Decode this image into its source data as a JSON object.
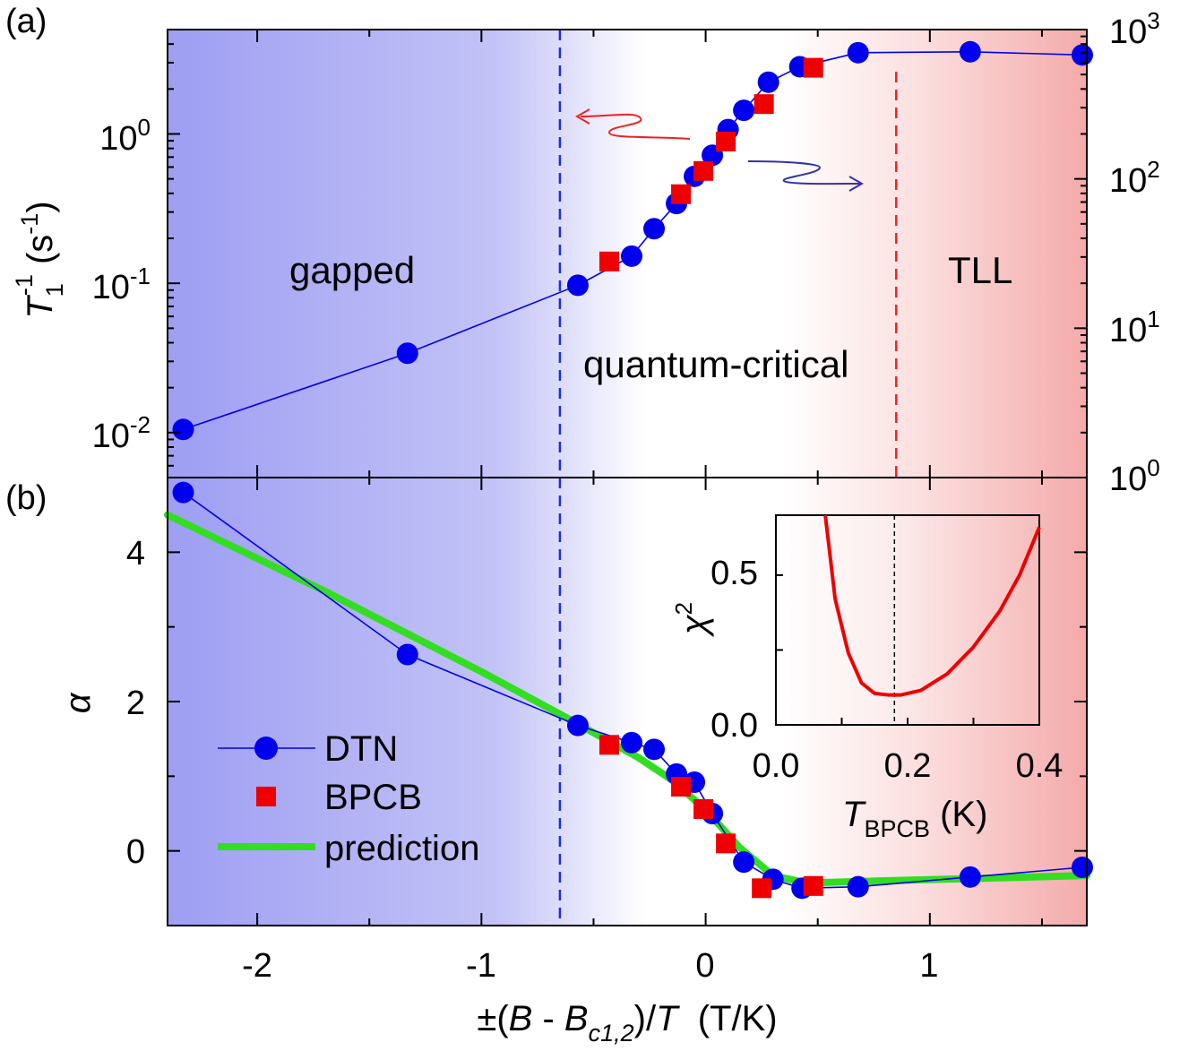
{
  "chart_data": [
    {
      "panel": "(a)",
      "type": "scatter",
      "xlabel": "±(B - Bc1,2)/T  (T/K)",
      "x_ticks": [
        "-2",
        "-1",
        "0",
        "1"
      ],
      "xlim": [
        -2.4,
        1.7
      ],
      "ylabel_left": "T1^-1 (s^-1)",
      "yscale": "log",
      "ylim_left": [
        0.005,
        5.0
      ],
      "yticks_left": [
        {
          "base": "10",
          "exp": "-2"
        },
        {
          "base": "10",
          "exp": "-1"
        },
        {
          "base": "10",
          "exp": "0"
        }
      ],
      "ylim_right": [
        1,
        1000
      ],
      "yticks_right": [
        {
          "base": "10",
          "exp": "0"
        },
        {
          "base": "10",
          "exp": "1"
        },
        {
          "base": "10",
          "exp": "2"
        },
        {
          "base": "10",
          "exp": "3"
        }
      ],
      "regions": [
        "gapped",
        "quantum-critical",
        "TLL"
      ],
      "crossovers": [
        -0.65,
        0.85
      ],
      "series": [
        {
          "name": "DTN",
          "axis": "left",
          "color": "#0000ee",
          "marker": "circle",
          "line": true,
          "x": [
            -2.33,
            -1.33,
            -0.57,
            -0.33,
            -0.23,
            -0.13,
            -0.05,
            0.03,
            0.1,
            0.17,
            0.28,
            0.42,
            0.68,
            1.18,
            1.68
          ],
          "y": [
            0.0105,
            0.034,
            0.097,
            0.152,
            0.232,
            0.342,
            0.52,
            0.72,
            1.07,
            1.44,
            2.22,
            2.82,
            3.5,
            3.55,
            3.38
          ]
        },
        {
          "name": "BPCB",
          "axis": "right",
          "color": "#ee0000",
          "marker": "square",
          "line": false,
          "x": [
            -0.43,
            -0.11,
            -0.01,
            0.09,
            0.26,
            0.48
          ],
          "y": [
            28,
            79,
            113,
            178,
            317,
            555
          ]
        }
      ],
      "annotations": [
        {
          "type": "arrow",
          "color": "#ee2222",
          "points_to": "left axis"
        },
        {
          "type": "arrow",
          "color": "#3333aa",
          "points_to": "right axis"
        }
      ]
    },
    {
      "panel": "(b)",
      "type": "line",
      "xlabel": "±(B - Bc1,2)/T  (T/K)",
      "x_ticks": [
        "-2",
        "-1",
        "0",
        "1"
      ],
      "xlim": [
        -2.4,
        1.7
      ],
      "ylabel": "α",
      "ylim": [
        -1.0,
        5.0
      ],
      "y_ticks": [
        "0",
        "2",
        "4"
      ],
      "series": [
        {
          "name": "DTN",
          "color": "#0000ee",
          "marker": "circle",
          "line": true,
          "x": [
            -2.33,
            -1.33,
            -0.57,
            -0.33,
            -0.23,
            -0.13,
            -0.05,
            0.03,
            0.17,
            0.3,
            0.43,
            0.68,
            1.18,
            1.68
          ],
          "y": [
            4.8,
            2.63,
            1.68,
            1.45,
            1.36,
            1.03,
            0.92,
            0.5,
            -0.15,
            -0.38,
            -0.5,
            -0.48,
            -0.35,
            -0.22
          ]
        },
        {
          "name": "BPCB",
          "color": "#ee0000",
          "marker": "square",
          "line": false,
          "x": [
            -0.43,
            -0.11,
            -0.01,
            0.09,
            0.25,
            0.48
          ],
          "y": [
            1.42,
            0.86,
            0.56,
            0.1,
            -0.5,
            -0.47
          ]
        },
        {
          "name": "prediction",
          "color": "#33dd22",
          "marker": "none",
          "line": true,
          "x": [
            -2.4,
            -1.7,
            -1.0,
            -0.6,
            -0.3,
            -0.15,
            0.0,
            0.15,
            0.3,
            0.45,
            0.8,
            1.2,
            1.7
          ],
          "y": [
            4.5,
            3.48,
            2.4,
            1.75,
            1.25,
            0.95,
            0.55,
            0.05,
            -0.33,
            -0.43,
            -0.4,
            -0.37,
            -0.33
          ]
        }
      ],
      "legend": {
        "entries": [
          "DTN",
          "BPCB",
          "prediction"
        ],
        "position": "lower-left"
      }
    },
    {
      "panel": "inset",
      "type": "line",
      "xlabel": "T_BPCB (K)",
      "x_ticks": [
        "0.0",
        "0.2",
        "0.4"
      ],
      "xlim": [
        0.0,
        0.4
      ],
      "ylabel": "χ²",
      "y_ticks": [
        "0.0",
        "0.5"
      ],
      "ylim": [
        0.0,
        0.7
      ],
      "marker_line_x": 0.18,
      "series": [
        {
          "name": "χ²",
          "color": "#ee0000",
          "x": [
            0.075,
            0.09,
            0.11,
            0.13,
            0.15,
            0.17,
            0.19,
            0.22,
            0.26,
            0.3,
            0.34,
            0.37,
            0.4
          ],
          "y": [
            0.7,
            0.42,
            0.24,
            0.14,
            0.105,
            0.1,
            0.1,
            0.115,
            0.17,
            0.26,
            0.38,
            0.5,
            0.66
          ]
        }
      ]
    }
  ],
  "text": {
    "panel_a": "(a)",
    "panel_b": "(b)",
    "gapped": "gapped",
    "quantum_critical": "quantum-critical",
    "tll": "TLL",
    "legend_dtn": "DTN",
    "legend_bpcb": "BPCB",
    "legend_prediction": "prediction",
    "ylabel_a_T": "T",
    "ylabel_a_sub": "1",
    "ylabel_a_sup": "-1",
    "ylabel_a_units": "(s",
    "ylabel_a_units_sup": "-1",
    "ylabel_a_close": ")",
    "ylabel_b": "α",
    "xlabel_prefix": "±(",
    "xlabel_B": "B",
    "xlabel_minus": " - ",
    "xlabel_Bc": "B",
    "xlabel_sub": "c1,2",
    "xlabel_mid": ")/",
    "xlabel_T": "T",
    "xlabel_units": "  (T/K)",
    "inset_ylabel": "χ",
    "inset_ylabel_sup": "2",
    "inset_xlabel_T": "T",
    "inset_xlabel_sub": "BPCB",
    "inset_xlabel_units": " (K)"
  },
  "colors": {
    "gapped_bg": "#9e9ef3",
    "tll_bg": "#f4aaaa",
    "dtn": "#0000ee",
    "bpcb": "#ee0000",
    "prediction": "#33dd22"
  }
}
